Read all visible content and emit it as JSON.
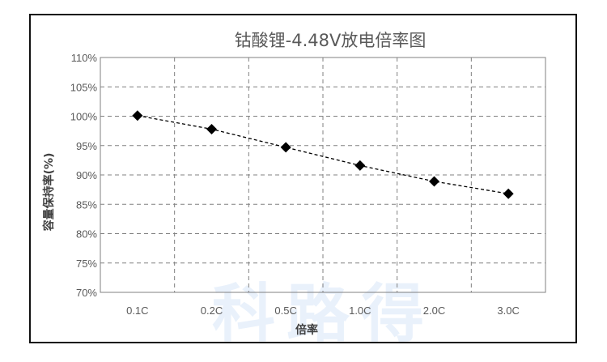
{
  "chart_data": {
    "type": "line",
    "title": "钴酸锂-4.48V放电倍率图",
    "xlabel": "倍率",
    "ylabel": "容量保持率(%)",
    "categories": [
      "0.1C",
      "0.2C",
      "0.5C",
      "1.0C",
      "2.0C",
      "3.0C"
    ],
    "series": [
      {
        "values": [
          100.1,
          97.8,
          94.7,
          91.6,
          88.9,
          86.8
        ]
      }
    ],
    "ylim": [
      70,
      110
    ],
    "yticks": [
      "70%",
      "75%",
      "80%",
      "85%",
      "90%",
      "95%",
      "100%",
      "105%",
      "110%"
    ],
    "grid": true,
    "line_style": "dashed",
    "marker": "diamond",
    "series_color": "#000000",
    "grid_color": "#808080",
    "watermark": "科路得"
  }
}
